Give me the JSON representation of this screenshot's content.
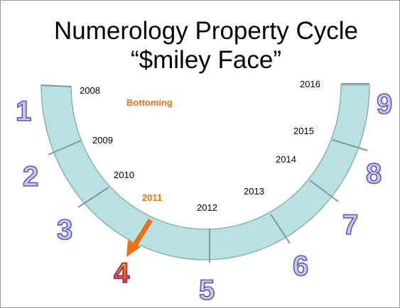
{
  "title": {
    "line1": "Numerology Property Cycle",
    "line2": "“$miley Face”"
  },
  "annotation": "Bottoming",
  "years": [
    "2008",
    "2009",
    "2010",
    "2011",
    "2012",
    "2013",
    "2014",
    "2015",
    "2016"
  ],
  "phases": [
    "1",
    "2",
    "3",
    "4",
    "5",
    "6",
    "7",
    "8",
    "9"
  ]
}
